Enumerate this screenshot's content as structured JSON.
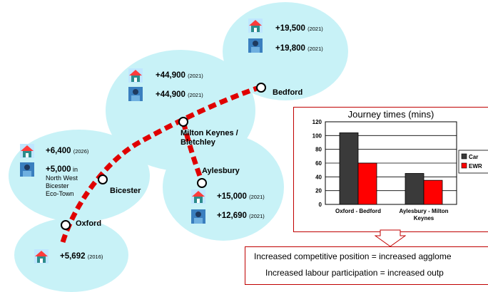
{
  "places": [
    {
      "name": "Oxford",
      "growth": [
        {
          "icon": "house-icon",
          "value": "+5,692",
          "year": "(2016)"
        }
      ]
    },
    {
      "name": "Bicester",
      "growth": [
        {
          "icon": "house-icon",
          "value": "+6,400",
          "year": "(2026)"
        },
        {
          "icon": "worker-icon",
          "value": "+5,000",
          "suffix": " in",
          "note_lines": [
            "North West",
            "Bicester",
            "Eco-Town"
          ]
        }
      ]
    },
    {
      "name": "Milton Keynes /\nBletchley",
      "growth": [
        {
          "icon": "house-icon",
          "value": "+44,900",
          "year": "(2021)"
        },
        {
          "icon": "worker-icon",
          "value": "+44,900",
          "year": "(2021)"
        }
      ]
    },
    {
      "name": "Aylesbury",
      "growth": [
        {
          "icon": "house-icon",
          "value": "+15,000",
          "year": "(2021)"
        },
        {
          "icon": "worker-icon",
          "value": "+12,690",
          "year": "(2021)"
        }
      ]
    },
    {
      "name": "Bedford",
      "growth": [
        {
          "icon": "house-icon",
          "value": "+19,500",
          "year": "(2021)"
        },
        {
          "icon": "worker-icon",
          "value": "+19,800",
          "year": "(2021)"
        }
      ]
    }
  ],
  "colors": {
    "bubble": "#c8f2f7",
    "route": "#e00000",
    "car": "#3a3a3a",
    "ewr": "#ff0000",
    "border": "#c00000"
  },
  "chart_data": {
    "type": "bar",
    "title": "Journey times (mins)",
    "categories": [
      "Oxford - Bedford",
      "Aylesbury - Milton Keynes"
    ],
    "series": [
      {
        "name": "Car",
        "values": [
          104,
          45
        ]
      },
      {
        "name": "EWR",
        "values": [
          60,
          35
        ]
      }
    ],
    "ylim": [
      0,
      120
    ],
    "yticks": [
      0,
      20,
      40,
      60,
      80,
      100,
      120
    ],
    "grid": true,
    "legend": "right"
  },
  "outcomes": [
    "Increased competitive position = increased agglome",
    "Increased labour participation = increased outp"
  ]
}
